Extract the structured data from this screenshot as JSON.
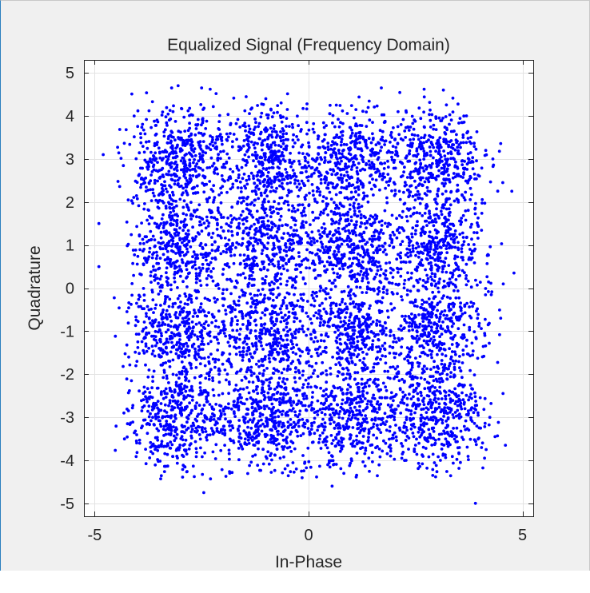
{
  "chart_data": {
    "type": "scatter",
    "title": "Equalized Signal (Frequency Domain)",
    "xlabel": "In-Phase",
    "ylabel": "Quadrature",
    "xlim": [
      -5.25,
      5.25
    ],
    "ylim": [
      -5.3,
      5.3
    ],
    "xticks": [
      -5,
      0,
      5
    ],
    "xtick_labels": [
      "-5",
      "0",
      "5"
    ],
    "yticks": [
      5,
      4,
      3,
      2,
      1,
      0,
      -1,
      -2,
      -3,
      -4,
      -5
    ],
    "ytick_labels": [
      "5",
      "4",
      "3",
      "2",
      "1",
      "0",
      "-1",
      "-2",
      "-3",
      "-4",
      "-5"
    ],
    "grid": true,
    "marker_color": "#0000ff",
    "constellation": "16-QAM",
    "cluster_centers_i": [
      -3,
      -1,
      1,
      3
    ],
    "cluster_centers_q": [
      -3,
      -1,
      1,
      3
    ],
    "noise_std": 0.6,
    "num_points": 7200,
    "outliers": [
      {
        "x": -4.8,
        "y": 3.1
      },
      {
        "x": -4.9,
        "y": 1.5
      },
      {
        "x": -4.9,
        "y": 0.5
      },
      {
        "x": -3.2,
        "y": 4.65
      },
      {
        "x": -3.05,
        "y": 4.7
      },
      {
        "x": -2.5,
        "y": 4.65
      },
      {
        "x": -2.3,
        "y": 4.62
      },
      {
        "x": -1.0,
        "y": 4.4
      },
      {
        "x": 1.7,
        "y": 4.65
      },
      {
        "x": 2.7,
        "y": 4.62
      },
      {
        "x": 3.15,
        "y": 4.6
      },
      {
        "x": 4.8,
        "y": 0.35
      },
      {
        "x": 4.75,
        "y": 2.25
      },
      {
        "x": 4.6,
        "y": -3.65
      },
      {
        "x": 3.9,
        "y": -5.0
      },
      {
        "x": 0.55,
        "y": -4.6
      },
      {
        "x": -2.45,
        "y": -4.75
      },
      {
        "x": 4.15,
        "y": -3.75
      }
    ]
  }
}
